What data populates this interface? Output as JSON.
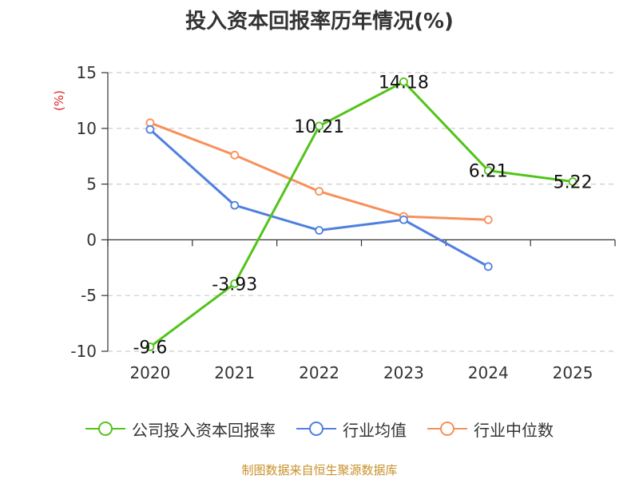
{
  "chart_data": {
    "type": "line",
    "title": "投入资本回报率历年情况(%)",
    "ylabel": "(%)",
    "x": [
      "2020",
      "2021",
      "2022",
      "2023",
      "2024",
      "2025"
    ],
    "ylim": [
      -10,
      15
    ],
    "yticks": [
      15,
      10,
      5,
      0,
      -5,
      -10
    ],
    "grid": true,
    "legend_position": "bottom",
    "series": [
      {
        "name": "公司投入资本回报率",
        "color": "#52c41a",
        "values": [
          -9.6,
          -3.93,
          10.21,
          14.18,
          6.21,
          5.22
        ],
        "labels": [
          "-9.6",
          "-3.93",
          "10.21",
          "14.18",
          "6.21",
          "5.22"
        ]
      },
      {
        "name": "行业均值",
        "color": "#4f7fe0",
        "values": [
          9.9,
          3.1,
          0.85,
          1.8,
          -2.4,
          null
        ]
      },
      {
        "name": "行业中位数",
        "color": "#f7905a",
        "values": [
          10.5,
          7.6,
          4.35,
          2.1,
          1.8,
          null
        ]
      }
    ]
  },
  "legend": {
    "items": [
      "公司投入资本回报率",
      "行业均值",
      "行业中位数"
    ]
  },
  "source": "制图数据来自恒生聚源数据库"
}
